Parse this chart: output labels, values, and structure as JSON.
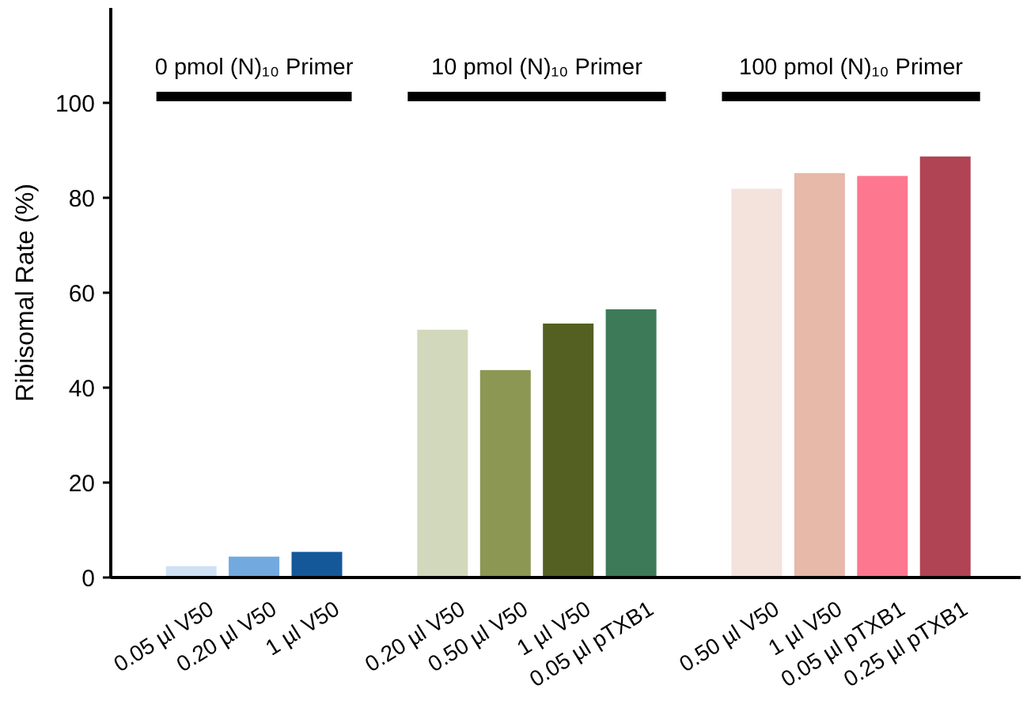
{
  "chart_data": {
    "type": "bar",
    "ylabel": "Ribisomal Rate (%)",
    "categories": [
      "0.05 µl V50",
      "0.20 µl V50",
      "1 µl V50",
      null,
      "0.20 µl V50",
      "0.50 µl V50",
      "1 µl V50",
      "0.05 µl pTXB1",
      null,
      "0.50 µl V50",
      "1 µl V50",
      "0.05 µl pTXB1",
      "0.25 µl pTXB1"
    ],
    "values": [
      2.4,
      4.4,
      5.4,
      null,
      52.2,
      43.7,
      53.5,
      56.5,
      null,
      81.9,
      85.2,
      84.6,
      88.7
    ],
    "colors": [
      "#cfe1f4",
      "#72a9de",
      "#14589a",
      null,
      "#d2d8bb",
      "#8b9752",
      "#536022",
      "#3c7a58",
      null,
      "#f4e2dc",
      "#e6b9a8",
      "#fd778f",
      "#b04354"
    ],
    "ylim": [
      0,
      120
    ],
    "yticks": [
      0,
      20,
      40,
      60,
      80,
      100
    ],
    "annotations": [
      "0 pmol (N)₁₀ Primer",
      "10 pmol (N)₁₀ Primer",
      "100 pmol (N)₁₀ Primer"
    ]
  }
}
